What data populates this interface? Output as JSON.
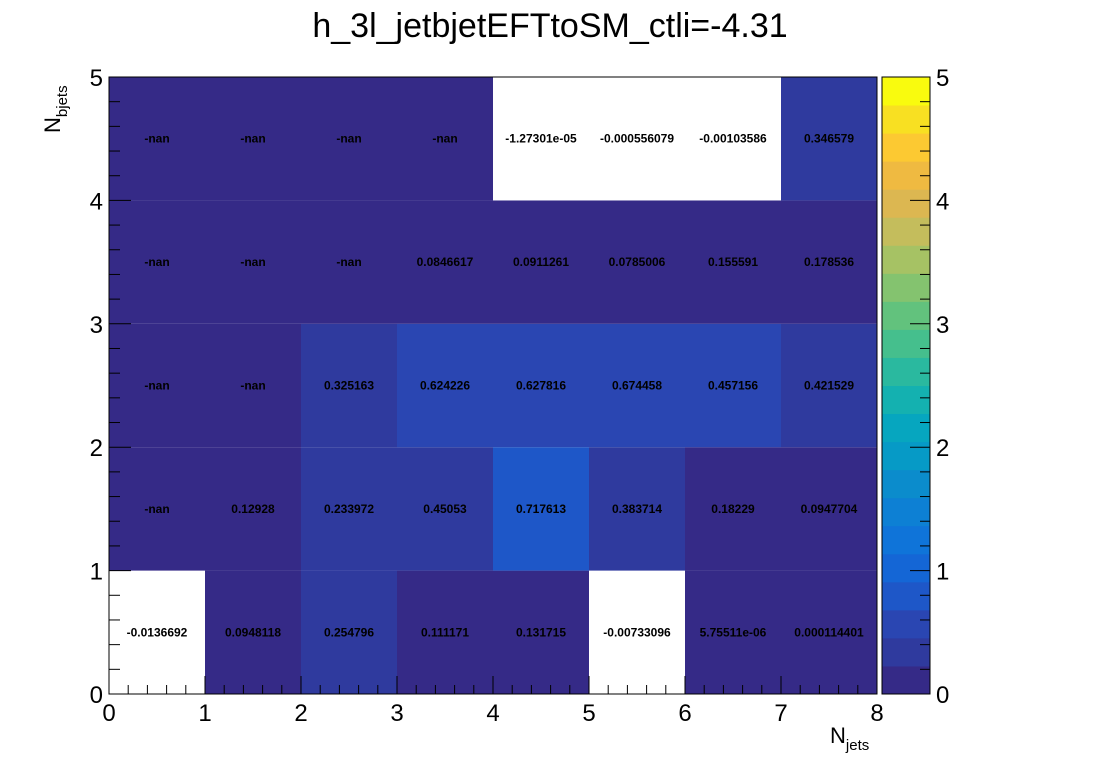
{
  "chart_data": {
    "type": "heatmap",
    "title": "h_3l_jetbjetEFTtoSM_ctli=-4.31",
    "xlabel_main": "N",
    "xlabel_sub": "jets",
    "ylabel_main": "N",
    "ylabel_sub": "bjets",
    "x_edges": [
      0,
      1,
      2,
      3,
      4,
      5,
      6,
      7,
      8
    ],
    "y_edges": [
      0,
      1,
      2,
      3,
      4,
      5
    ],
    "xlim": [
      0,
      8
    ],
    "ylim": [
      0,
      5
    ],
    "x_ticks": [
      "0",
      "1",
      "2",
      "3",
      "4",
      "5",
      "6",
      "7",
      "8"
    ],
    "y_ticks": [
      "0",
      "1",
      "2",
      "3",
      "4",
      "5"
    ],
    "colorbar_range": [
      0,
      5
    ],
    "colorbar_ticks": [
      "0",
      "1",
      "2",
      "3",
      "4",
      "5"
    ],
    "colormap": "parula",
    "grid": false,
    "rows": [
      {
        "y_bin": "0-1",
        "labels": [
          "-0.0136692",
          "0.0948118",
          "0.254796",
          "0.111171",
          "0.131715",
          "-0.00733096",
          "5.75511e-06",
          "0.000114401"
        ],
        "values": [
          -0.0136692,
          0.0948118,
          0.254796,
          0.111171,
          0.131715,
          -0.00733096,
          5.75511e-06,
          0.000114401
        ]
      },
      {
        "y_bin": "1-2",
        "labels": [
          "-nan",
          "0.12928",
          "0.233972",
          "0.45053",
          "0.717613",
          "0.383714",
          "0.18229",
          "0.0947704"
        ],
        "values": [
          null,
          0.12928,
          0.233972,
          0.45053,
          0.717613,
          0.383714,
          0.18229,
          0.0947704
        ]
      },
      {
        "y_bin": "2-3",
        "labels": [
          "-nan",
          "-nan",
          "0.325163",
          "0.624226",
          "0.627816",
          "0.674458",
          "0.457156",
          "0.421529"
        ],
        "values": [
          null,
          null,
          0.325163,
          0.624226,
          0.627816,
          0.674458,
          0.457156,
          0.421529
        ]
      },
      {
        "y_bin": "3-4",
        "labels": [
          "-nan",
          "-nan",
          "-nan",
          "0.0846617",
          "0.0911261",
          "0.0785006",
          "0.155591",
          "0.178536"
        ],
        "values": [
          null,
          null,
          null,
          0.0846617,
          0.0911261,
          0.0785006,
          0.155591,
          0.178536
        ]
      },
      {
        "y_bin": "4-5",
        "labels": [
          "-nan",
          "-nan",
          "-nan",
          "-nan",
          "-1.27301e-05",
          "-0.000556079",
          "-0.00103586",
          "0.346579"
        ],
        "values": [
          null,
          null,
          null,
          null,
          -1.27301e-05,
          -0.000556079,
          -0.00103586,
          0.346579
        ]
      }
    ],
    "colors": {
      "nan_cell": "#352a87",
      "negative_cell": "#ffffff",
      "palette": [
        "#352a87",
        "#2f3a9e",
        "#2a46b2",
        "#1e57c8",
        "#1466d6",
        "#0f74d9",
        "#0d80d4",
        "#0b8ccc",
        "#069ac6",
        "#06a6bf",
        "#14b1b0",
        "#2ab99f",
        "#45bf8d",
        "#62c27d",
        "#84c36f",
        "#a6c264",
        "#c4bd5c",
        "#dcb751",
        "#efba41",
        "#fcc932",
        "#f8e022",
        "#f9fb0e"
      ]
    }
  }
}
